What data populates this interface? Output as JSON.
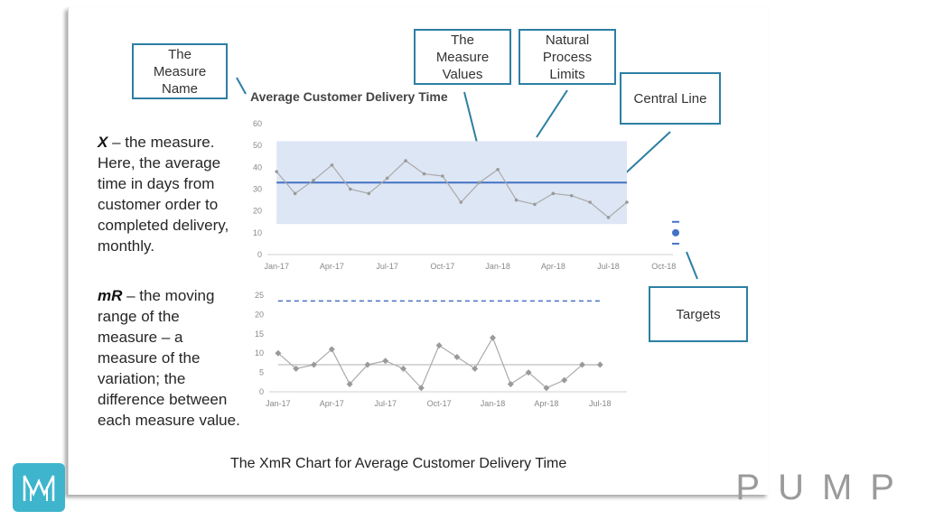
{
  "callouts": {
    "measure_name": "The\nMeasure\nName",
    "measure_values": "The\nMeasure\nValues",
    "process_limits": "Natural\nProcess\nLimits",
    "central_line": "Central Line",
    "targets": "Targets"
  },
  "descriptions": {
    "x_symbol": "X",
    "x_text": " – the measure.\nHere,  the average\ntime in days from\ncustomer order to\ncompleted delivery,\nmonthly.",
    "mr_symbol": "mR",
    "mr_text": " – the moving\nrange of the\nmeasure – a\nmeasure of the\nvariation; the\ndifference between\neach measure value."
  },
  "caption": "The XmR Chart for Average Customer Delivery Time",
  "brand": "PUMP",
  "logo_letter": "M",
  "colors": {
    "accent": "#2d7fa3",
    "line": "#4472c4",
    "band": "#dde6f4",
    "points": "#999999",
    "logo": "#3eb5cc"
  },
  "chart_data": [
    {
      "type": "line",
      "title": "Average Customer Delivery Time",
      "xlabel": "",
      "ylabel": "",
      "ylim": [
        0,
        60
      ],
      "yticks": [
        0,
        10,
        20,
        30,
        40,
        50,
        60
      ],
      "x_tick_labels": [
        "Jan-17",
        "Apr-17",
        "Jul-17",
        "Oct-17",
        "Jan-18",
        "Apr-18",
        "Jul-18",
        "Oct-18"
      ],
      "n_slots": 22,
      "values": [
        38,
        28,
        34,
        41,
        30,
        28,
        35,
        43,
        37,
        36,
        24,
        33,
        39,
        25,
        23,
        28,
        27,
        24,
        17,
        24
      ],
      "central_line": 33,
      "upper_limit": 52,
      "lower_limit": 14,
      "target": {
        "value": 10,
        "high": 15,
        "low": 5
      }
    },
    {
      "type": "line",
      "title": "",
      "ylim": [
        0,
        25
      ],
      "yticks": [
        0,
        5,
        10,
        15,
        20,
        25
      ],
      "x_tick_labels": [
        "Jan-17",
        "Apr-17",
        "Jul-17",
        "Oct-17",
        "Jan-18",
        "Apr-18",
        "Jul-18"
      ],
      "n_slots": 20,
      "values": [
        10,
        6,
        7,
        11,
        2,
        7,
        8,
        6,
        1,
        12,
        9,
        6,
        14,
        2,
        5,
        1,
        3,
        7,
        7
      ],
      "average_line": 7,
      "upper_limit": 23.5
    }
  ]
}
